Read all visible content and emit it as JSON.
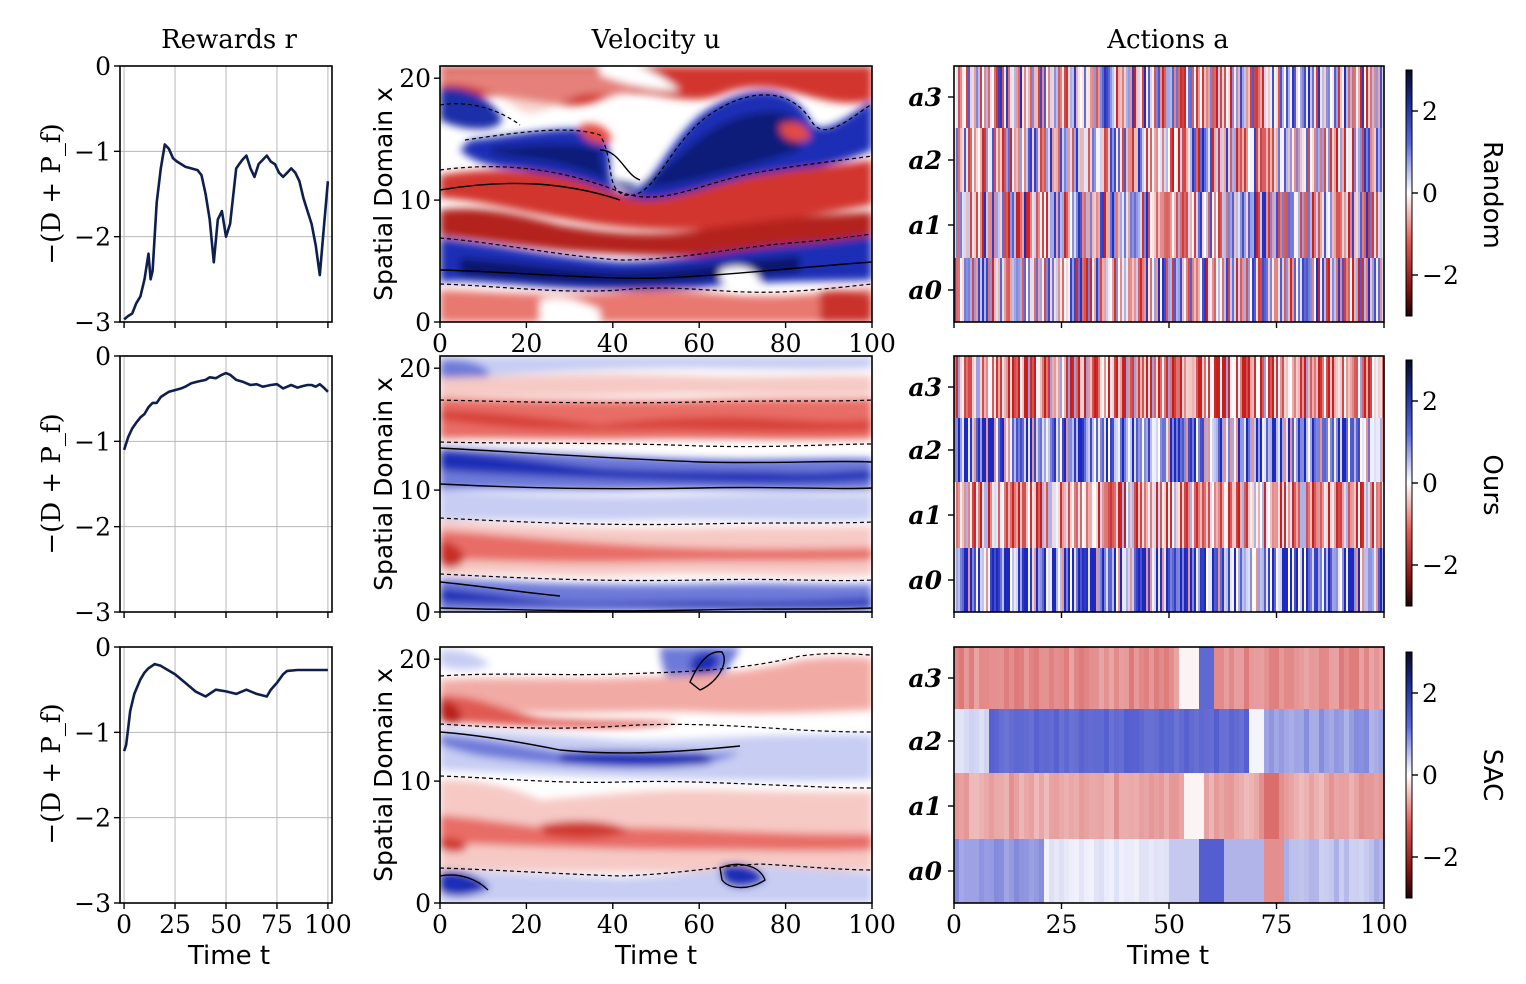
{
  "columns": {
    "rewards_title": "Rewards r",
    "velocity_title": "Velocity u",
    "actions_title": "Actions a"
  },
  "rows": [
    "Random",
    "Ours",
    "SAC"
  ],
  "chart_data": [
    {
      "type": "line",
      "row": "Random",
      "title": "Rewards r",
      "xlabel": "Time t",
      "ylabel": "−(D + P_f)",
      "xlim": [
        -2,
        102
      ],
      "ylim": [
        -3,
        0
      ],
      "yticks": [
        "0",
        "−1",
        "−2",
        "−3"
      ],
      "grid": true,
      "line_color": "#0e1f4d",
      "x": [
        0,
        2,
        4,
        6,
        8,
        10,
        12,
        13,
        14,
        16,
        18,
        20,
        22,
        24,
        26,
        28,
        30,
        33,
        36,
        38,
        40,
        42,
        44,
        46,
        48,
        50,
        52,
        55,
        58,
        60,
        62,
        64,
        66,
        68,
        70,
        72,
        74,
        76,
        78,
        80,
        82,
        84,
        86,
        88,
        90,
        92,
        94,
        96,
        98,
        100
      ],
      "y": [
        -2.97,
        -2.93,
        -2.9,
        -2.78,
        -2.7,
        -2.5,
        -2.2,
        -2.5,
        -2.4,
        -1.6,
        -1.2,
        -0.92,
        -0.97,
        -1.08,
        -1.12,
        -1.15,
        -1.18,
        -1.2,
        -1.22,
        -1.28,
        -1.5,
        -1.8,
        -2.3,
        -1.8,
        -1.7,
        -2.0,
        -1.85,
        -1.2,
        -1.1,
        -1.05,
        -1.2,
        -1.3,
        -1.15,
        -1.1,
        -1.05,
        -1.12,
        -1.15,
        -1.25,
        -1.3,
        -1.25,
        -1.2,
        -1.25,
        -1.35,
        -1.55,
        -1.7,
        -1.85,
        -2.1,
        -2.45,
        -1.9,
        -1.35
      ]
    },
    {
      "type": "heatmap",
      "row": "Random",
      "title": "Velocity u",
      "xlabel": "Time t",
      "ylabel": "Spatial Domain x",
      "xlim": [
        0,
        100
      ],
      "ylim": [
        0,
        21
      ],
      "yticks": [
        "20",
        "10",
        "0"
      ],
      "xticks": [
        "0",
        "20",
        "40",
        "60",
        "80",
        "100"
      ],
      "colormap": [
        "#67001f",
        "#ffffff",
        "#053061"
      ]
    },
    {
      "type": "heatmap",
      "row": "Random",
      "title": "Actions a",
      "xlabel": "Time t",
      "ylabel": "",
      "categories": [
        "a3",
        "a2",
        "a1",
        "a0"
      ],
      "xlim": [
        0,
        100
      ],
      "colorbar_ticks": [
        "2",
        "0",
        "−2"
      ],
      "colorbar_range": [
        -3,
        3
      ]
    },
    {
      "type": "line",
      "row": "Ours",
      "title": "",
      "xlabel": "Time t",
      "ylabel": "−(D + P_f)",
      "xlim": [
        -2,
        102
      ],
      "ylim": [
        -3,
        0
      ],
      "yticks": [
        "0",
        "−1",
        "−2",
        "−3"
      ],
      "grid": true,
      "line_color": "#0e1f4d",
      "x": [
        0,
        2,
        4,
        6,
        8,
        10,
        12,
        14,
        16,
        18,
        20,
        22,
        25,
        28,
        30,
        33,
        36,
        40,
        42,
        45,
        48,
        50,
        52,
        55,
        58,
        60,
        62,
        65,
        68,
        70,
        72,
        75,
        78,
        80,
        82,
        85,
        88,
        90,
        92,
        94,
        96,
        98,
        100
      ],
      "y": [
        -1.1,
        -0.95,
        -0.85,
        -0.78,
        -0.72,
        -0.68,
        -0.6,
        -0.55,
        -0.55,
        -0.48,
        -0.45,
        -0.42,
        -0.4,
        -0.38,
        -0.36,
        -0.32,
        -0.3,
        -0.28,
        -0.25,
        -0.26,
        -0.22,
        -0.2,
        -0.22,
        -0.28,
        -0.3,
        -0.32,
        -0.34,
        -0.33,
        -0.36,
        -0.35,
        -0.34,
        -0.33,
        -0.38,
        -0.36,
        -0.34,
        -0.37,
        -0.35,
        -0.34,
        -0.34,
        -0.36,
        -0.33,
        -0.37,
        -0.42
      ]
    },
    {
      "type": "heatmap",
      "row": "Ours",
      "title": "",
      "xlabel": "Time t",
      "ylabel": "Spatial Domain x",
      "xlim": [
        0,
        100
      ],
      "ylim": [
        0,
        21
      ],
      "yticks": [
        "20",
        "10",
        "0"
      ]
    },
    {
      "type": "heatmap",
      "row": "Ours",
      "title": "",
      "xlabel": "Time t",
      "ylabel": "",
      "categories": [
        "a3",
        "a2",
        "a1",
        "a0"
      ],
      "xlim": [
        0,
        100
      ],
      "colorbar_ticks": [
        "2",
        "0",
        "−2"
      ],
      "colorbar_range": [
        -3,
        3
      ]
    },
    {
      "type": "line",
      "row": "SAC",
      "title": "",
      "xlabel": "Time t",
      "ylabel": "−(D + P_f)",
      "xlim": [
        -2,
        102
      ],
      "ylim": [
        -3,
        0
      ],
      "xticks": [
        "0",
        "25",
        "50",
        "75",
        "100"
      ],
      "yticks": [
        "0",
        "−1",
        "−2",
        "−3"
      ],
      "grid": true,
      "line_color": "#0e1f4d",
      "x": [
        0,
        1,
        2,
        3,
        5,
        8,
        10,
        12,
        15,
        18,
        20,
        25,
        30,
        35,
        40,
        45,
        50,
        55,
        60,
        65,
        70,
        72,
        75,
        78,
        80,
        85,
        90,
        95,
        100
      ],
      "y": [
        -1.22,
        -1.15,
        -0.95,
        -0.75,
        -0.55,
        -0.38,
        -0.3,
        -0.25,
        -0.2,
        -0.22,
        -0.25,
        -0.32,
        -0.42,
        -0.52,
        -0.58,
        -0.5,
        -0.52,
        -0.55,
        -0.5,
        -0.55,
        -0.58,
        -0.5,
        -0.42,
        -0.32,
        -0.28,
        -0.27,
        -0.27,
        -0.27,
        -0.27
      ]
    },
    {
      "type": "heatmap",
      "row": "SAC",
      "title": "",
      "xlabel": "Time t",
      "ylabel": "Spatial Domain x",
      "xlim": [
        0,
        100
      ],
      "ylim": [
        0,
        21
      ],
      "xticks": [
        "0",
        "20",
        "40",
        "60",
        "80",
        "100"
      ],
      "yticks": [
        "20",
        "10",
        "0"
      ]
    },
    {
      "type": "heatmap",
      "row": "SAC",
      "title": "",
      "xlabel": "Time t",
      "ylabel": "",
      "categories": [
        "a3",
        "a2",
        "a1",
        "a0"
      ],
      "xlim": [
        0,
        100
      ],
      "xticks": [
        "0",
        "25",
        "50",
        "75",
        "100"
      ],
      "colorbar_ticks": [
        "2",
        "0",
        "−2"
      ],
      "colorbar_range": [
        -3,
        3
      ]
    }
  ],
  "labels": {
    "time_t": "Time t",
    "spatial": "Spatial Domain x",
    "reward_ylabel": "−(D + P_f)"
  }
}
